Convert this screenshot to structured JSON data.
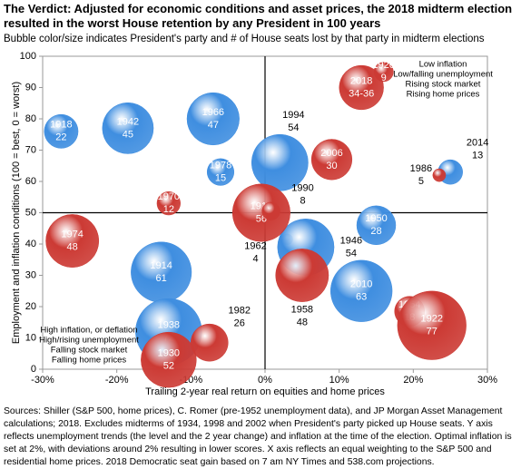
{
  "chart_data": {
    "type": "bubble",
    "title": "The Verdict: Adjusted for economic conditions and asset prices, the 2018 midterm election resulted in the worst House retention by any President in 100 years",
    "subtitle": "Bubble color/size indicates President's party and # of House seats lost by that party in midterm elections",
    "xlabel": "Trailing 2-year real return on equities and home prices",
    "ylabel": "Employment and inflation conditions  (100 = best, 0 = worst)",
    "xlim": [
      -30,
      30
    ],
    "xticks": [
      {
        "value": -30,
        "label": "-30%"
      },
      {
        "value": -20,
        "label": "-20%"
      },
      {
        "value": -10,
        "label": "-10%"
      },
      {
        "value": 0,
        "label": "0%"
      },
      {
        "value": 10,
        "label": "10%"
      },
      {
        "value": 20,
        "label": "20%"
      },
      {
        "value": 30,
        "label": "30%"
      }
    ],
    "ylim": [
      0,
      100
    ],
    "yticks": [
      0,
      10,
      20,
      30,
      40,
      50,
      60,
      70,
      80,
      90,
      100
    ],
    "quadrant_lines": {
      "x": 0,
      "y": 50
    },
    "series": [
      {
        "color": "#3f8ee0",
        "labels": [
          "1918",
          "1942",
          "1966",
          "1978",
          "1994",
          "2014",
          "1950",
          "1962",
          "1946",
          "1914",
          "2010",
          "1938"
        ],
        "x": [
          -27.5,
          -18.5,
          -7,
          -6,
          2,
          25,
          15,
          3,
          5.5,
          -14,
          13,
          -13
        ],
        "y": [
          76,
          77,
          80,
          63,
          66,
          63,
          46,
          41.5,
          39,
          31,
          25,
          12
        ],
        "sizes": [
          22,
          45,
          47,
          15,
          54,
          13,
          28,
          4,
          54,
          61,
          63,
          72
        ]
      },
      {
        "color": "#cc3a34",
        "labels": [
          "1926",
          "2018",
          "2006",
          "1970",
          "1910",
          "1990",
          "1974",
          "1958",
          "1954",
          "1922",
          "1982",
          "1930",
          "1986"
        ],
        "x": [
          16,
          13,
          9,
          -13,
          -0.5,
          0.8,
          -26,
          5,
          19.5,
          22.5,
          -7.5,
          -13,
          23.5
        ],
        "y": [
          95,
          90,
          67,
          53,
          50,
          50.5,
          41,
          30,
          18.5,
          14,
          8.5,
          3,
          62
        ],
        "sizes": [
          9,
          35,
          30,
          12,
          56,
          8,
          48,
          48,
          18,
          77,
          26,
          52,
          5
        ],
        "value_labels": [
          "9",
          "34-36",
          "30",
          "12",
          "56",
          "8",
          "48",
          "48",
          "18",
          "77",
          "26",
          "52",
          "5"
        ]
      }
    ],
    "annotations": {
      "top_right": [
        "Low inflation",
        "Low/falling unemployment",
        "Rising stock market",
        "Rising home prices"
      ],
      "bottom_left": [
        "High inflation, or deflation",
        "High/rising unemployment",
        "Falling stock market",
        "Falling home prices"
      ]
    },
    "footnote": "Sources: Shiller (S&P 500, home prices), C. Romer (pre-1952 unemployment data), and JP Morgan Asset Management calculations; 2018. Excludes midterms of 1934, 1998 and 2002 when President's party picked up House seats.  Y axis reflects unemployment trends (the level and the 2 year change) and inflation at the time of the election.  Optimal inflation is set at 2%, with deviations around 2% resulting in lower scores.  X axis reflects an equal weighting to the S&P 500 and residential home prices.  2018 Democratic seat gain based on 7 am NY Times and 538.com projections."
  }
}
